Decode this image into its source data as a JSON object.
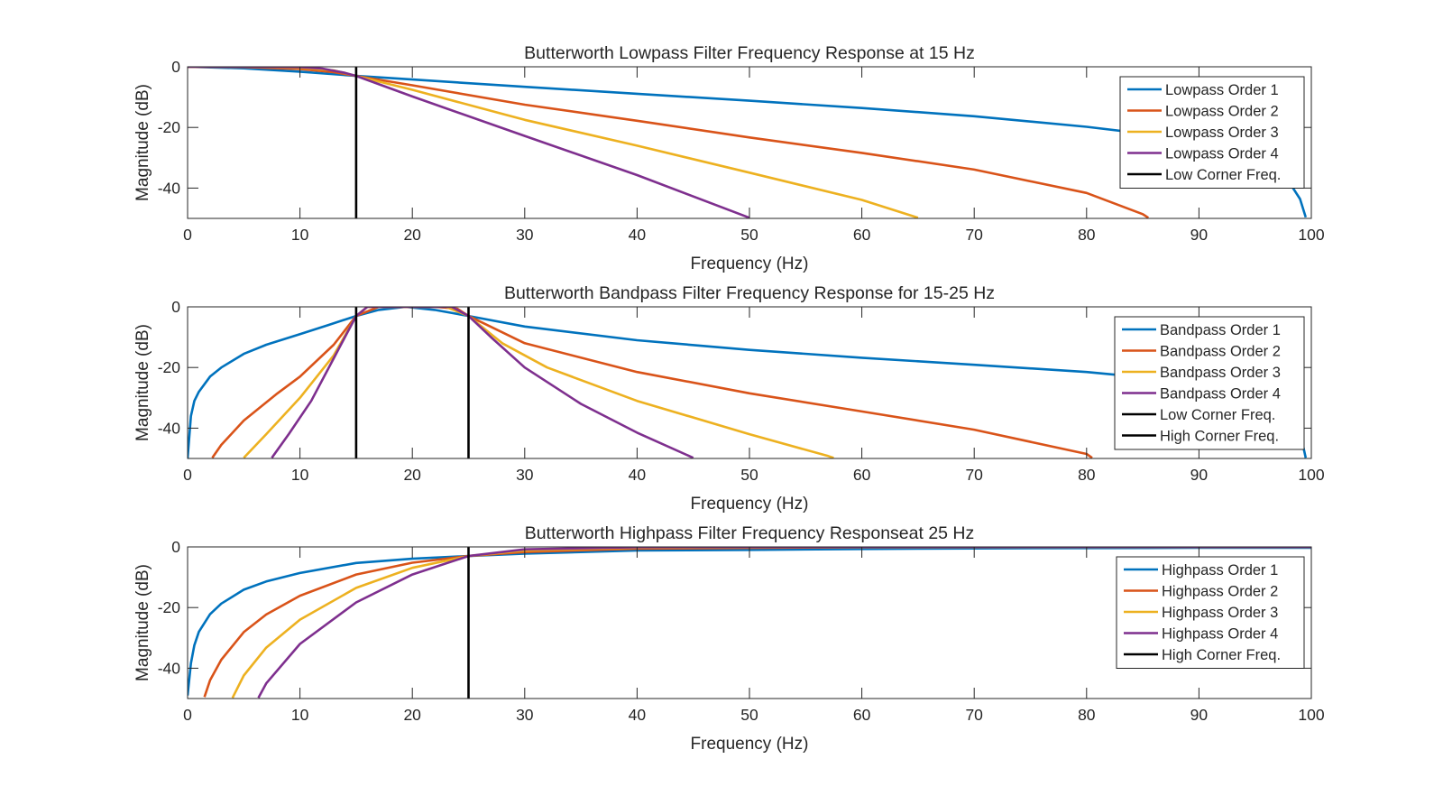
{
  "chart_data": [
    {
      "type": "line",
      "title": "Butterworth Lowpass Filter Frequency Response at 15 Hz",
      "xlabel": "Frequency (Hz)",
      "ylabel": "Magnitude (dB)",
      "xlim": [
        0,
        100
      ],
      "ylim": [
        -50,
        0
      ],
      "xticks": [
        0,
        10,
        20,
        30,
        40,
        50,
        60,
        70,
        80,
        90,
        100
      ],
      "yticks": [
        0,
        -20,
        -40
      ],
      "grid": false,
      "legend_position": "top-right",
      "series": [
        {
          "name": "Lowpass Order 1",
          "color": "#0072BD",
          "x": [
            0,
            5,
            10,
            15,
            20,
            30,
            40,
            50,
            60,
            70,
            80,
            85,
            90,
            95,
            97,
            98,
            99,
            99.5
          ],
          "y": [
            0,
            -0.5,
            -1.6,
            -3.0,
            -4.2,
            -6.6,
            -8.9,
            -11.2,
            -13.6,
            -16.3,
            -19.8,
            -22.0,
            -25.1,
            -30.6,
            -34.6,
            -37.9,
            -43.6,
            -49.6
          ]
        },
        {
          "name": "Lowpass Order 2",
          "color": "#D95319",
          "x": [
            0,
            5,
            10,
            13,
            15,
            20,
            30,
            40,
            50,
            60,
            70,
            80,
            85,
            85.5
          ],
          "y": [
            0,
            -0.1,
            -0.7,
            -1.8,
            -3.0,
            -6.1,
            -12.5,
            -17.8,
            -23.3,
            -28.4,
            -33.9,
            -41.6,
            -48.6,
            -49.8
          ]
        },
        {
          "name": "Lowpass Order 3",
          "color": "#EDB120",
          "x": [
            0,
            5,
            10,
            13,
            15,
            20,
            30,
            40,
            50,
            60,
            65
          ],
          "y": [
            0,
            0,
            -0.3,
            -1.2,
            -3.0,
            -7.6,
            -17.5,
            -26.0,
            -34.9,
            -43.9,
            -49.8
          ]
        },
        {
          "name": "Lowpass Order 4",
          "color": "#7E2F8E",
          "x": [
            0,
            5,
            10,
            12,
            14,
            15,
            20,
            30,
            40,
            50
          ],
          "y": [
            0,
            0,
            -0.1,
            -0.6,
            -2.0,
            -3.0,
            -9.8,
            -22.8,
            -35.7,
            -49.8
          ]
        },
        {
          "name": "Low Corner Freq.",
          "color": "#000000",
          "x": [
            15,
            15
          ],
          "y": [
            0,
            -50
          ]
        }
      ]
    },
    {
      "type": "line",
      "title": "Butterworth Bandpass Filter Frequency Response for 15-25 Hz",
      "xlabel": "Frequency (Hz)",
      "ylabel": "Magnitude (dB)",
      "xlim": [
        0,
        100
      ],
      "ylim": [
        -50,
        0
      ],
      "xticks": [
        0,
        10,
        20,
        30,
        40,
        50,
        60,
        70,
        80,
        90,
        100
      ],
      "yticks": [
        0,
        -20,
        -40
      ],
      "grid": false,
      "legend_position": "top-right",
      "series": [
        {
          "name": "Bandpass Order 1",
          "color": "#0072BD",
          "x": [
            0,
            0.3,
            0.6,
            1,
            2,
            3,
            5,
            7,
            10,
            12.5,
            15,
            17,
            19.4,
            22,
            25,
            30,
            40,
            50,
            60,
            70,
            80,
            90,
            95,
            97,
            98,
            99,
            99.5
          ],
          "y": [
            -50,
            -36,
            -31,
            -28,
            -23,
            -20,
            -15.5,
            -12.5,
            -9,
            -6,
            -3,
            -1,
            0,
            -1,
            -3,
            -6.5,
            -11,
            -14.2,
            -16.8,
            -19.1,
            -21.5,
            -25,
            -28.8,
            -32.2,
            -35.2,
            -41.3,
            -49.8
          ]
        },
        {
          "name": "Bandpass Order 2",
          "color": "#D95319",
          "x": [
            2.2,
            3,
            5,
            8,
            10,
            13,
            15,
            17,
            19.4,
            22,
            24,
            25,
            30,
            40,
            50,
            60,
            70,
            80,
            80.5
          ],
          "y": [
            -49.8,
            -45.5,
            -37.5,
            -28.5,
            -23,
            -12.5,
            -3,
            0,
            0,
            0,
            -0.6,
            -3,
            -12,
            -21.5,
            -28.5,
            -34.5,
            -40.5,
            -48.5,
            -49.8
          ]
        },
        {
          "name": "Bandpass Order 3",
          "color": "#EDB120",
          "x": [
            5,
            7,
            10,
            13,
            15,
            16,
            19.4,
            23,
            25,
            28,
            32,
            40,
            50,
            57,
            57.5
          ],
          "y": [
            -49.8,
            -42,
            -30,
            -16,
            -3,
            0,
            0,
            0,
            -3,
            -12,
            -20,
            -31,
            -42,
            -49.2,
            -49.8
          ]
        },
        {
          "name": "Bandpass Order 4",
          "color": "#7E2F8E",
          "x": [
            7.5,
            9,
            11,
            13,
            15,
            16,
            19.4,
            23.5,
            25,
            27,
            30,
            35,
            40,
            45
          ],
          "y": [
            -49.8,
            -42,
            -31,
            -17,
            -3,
            0,
            0,
            0,
            -3,
            -10,
            -20,
            -32,
            -41.5,
            -49.8
          ]
        },
        {
          "name": "Low Corner Freq.",
          "color": "#000000",
          "x": [
            15,
            15
          ],
          "y": [
            0,
            -50
          ]
        },
        {
          "name": "High Corner Freq.",
          "color": "#000000",
          "x": [
            25,
            25
          ],
          "y": [
            0,
            -50
          ]
        }
      ]
    },
    {
      "type": "line",
      "title": "Butterworth Highpass Filter Frequency Responseat 25 Hz",
      "xlabel": "Frequency (Hz)",
      "ylabel": "Magnitude (dB)",
      "xlim": [
        0,
        100
      ],
      "ylim": [
        -50,
        0
      ],
      "xticks": [
        0,
        10,
        20,
        30,
        40,
        50,
        60,
        70,
        80,
        90,
        100
      ],
      "yticks": [
        0,
        -20,
        -40
      ],
      "grid": false,
      "legend_position": "top-right",
      "series": [
        {
          "name": "Highpass Order 1",
          "color": "#0072BD",
          "x": [
            0,
            0.3,
            0.6,
            1,
            2,
            3,
            5,
            7,
            10,
            15,
            20,
            25,
            30,
            40,
            50,
            60,
            70,
            80,
            90,
            100
          ],
          "y": [
            -49,
            -38.4,
            -32.4,
            -28,
            -22.2,
            -18.7,
            -14.1,
            -11.4,
            -8.6,
            -5.3,
            -3.9,
            -3.0,
            -2.2,
            -1.2,
            -0.97,
            -0.69,
            -0.5,
            -0.4,
            -0.3,
            -0.26
          ]
        },
        {
          "name": "Highpass Order 2",
          "color": "#D95319",
          "x": [
            1.5,
            2,
            3,
            5,
            7,
            10,
            15,
            20,
            25,
            30,
            40,
            60,
            100
          ],
          "y": [
            -49.5,
            -44,
            -37.2,
            -28.1,
            -22.3,
            -16.1,
            -9.1,
            -5.2,
            -3.0,
            -1.7,
            -0.6,
            -0.1,
            0
          ]
        },
        {
          "name": "Highpass Order 3",
          "color": "#EDB120",
          "x": [
            4,
            5,
            7,
            10,
            15,
            20,
            25,
            30,
            40,
            60,
            100
          ],
          "y": [
            -49.8,
            -42.4,
            -33.2,
            -24,
            -13.5,
            -6.9,
            -3.0,
            -1.2,
            -0.2,
            0,
            0
          ]
        },
        {
          "name": "Highpass Order 4",
          "color": "#7E2F8E",
          "x": [
            6.3,
            7,
            10,
            15,
            20,
            25,
            30,
            40,
            60,
            100
          ],
          "y": [
            -49.8,
            -45,
            -32,
            -18.3,
            -9.1,
            -3.0,
            -0.8,
            -0.1,
            0,
            0
          ]
        },
        {
          "name": "High Corner Freq.",
          "color": "#000000",
          "x": [
            25,
            25
          ],
          "y": [
            0,
            -50
          ]
        }
      ]
    }
  ]
}
